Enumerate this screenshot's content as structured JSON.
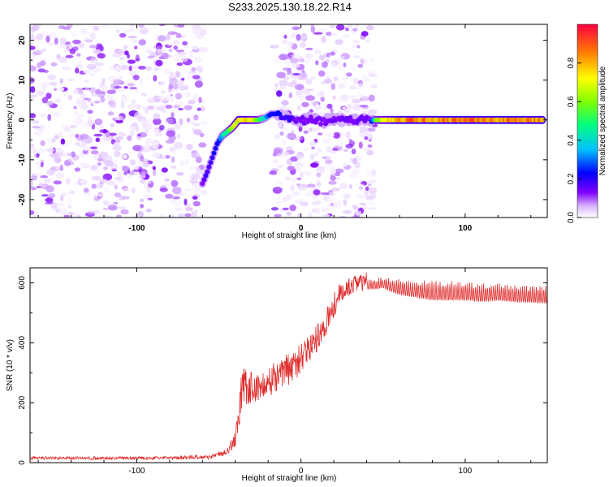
{
  "title": "S233.2025.130.18.22.R14",
  "chart_data": [
    {
      "type": "heatmap",
      "xlabel": "Height of straight line (km)",
      "ylabel": "Frequency (Hz)",
      "xlim": [
        -165,
        150
      ],
      "ylim": [
        -24.5,
        24
      ],
      "x_ticks": [
        -100,
        0,
        100
      ],
      "y_ticks": [
        -20,
        -10,
        0,
        10,
        20
      ],
      "colorbar": {
        "label": "Normalized spectral amplitude",
        "range": [
          0,
          1
        ],
        "ticks": [
          0.0,
          0.2,
          0.4,
          0.6,
          0.8
        ],
        "tick_labels": [
          "0.0",
          "0.2",
          "0.4",
          "0.6",
          "0.8"
        ],
        "colormap": [
          "#ffffff",
          "#d9b3ff",
          "#8000ff",
          "#0000ff",
          "#00c0ff",
          "#00ff80",
          "#80ff00",
          "#ffff00",
          "#ff8000",
          "#ff0040"
        ]
      },
      "noise_regions": [
        [
          -165,
          -58
        ],
        [
          -17,
          45
        ]
      ],
      "signal_track": {
        "x": [
          -60,
          -57,
          -54,
          -51,
          -48,
          -45,
          -42,
          -38,
          -34,
          -30,
          -26,
          -22,
          -18,
          -14,
          -10,
          -6,
          -2,
          2,
          6,
          10,
          14,
          18,
          22,
          26,
          30,
          34,
          38,
          42,
          46,
          60,
          80,
          100,
          120,
          148
        ],
        "freq": [
          -16,
          -13,
          -9.5,
          -6,
          -4,
          -3,
          -2,
          0,
          0,
          0,
          0,
          0.5,
          1.5,
          1.5,
          1,
          0.5,
          0,
          0,
          0.5,
          0,
          -0.5,
          0.5,
          0,
          0.5,
          0,
          0,
          0,
          0,
          0,
          0,
          0,
          0,
          0,
          0
        ],
        "amplitude": [
          0.25,
          0.3,
          0.3,
          0.35,
          0.5,
          0.6,
          0.7,
          0.85,
          0.9,
          0.8,
          0.7,
          0.5,
          0.35,
          0.35,
          0.3,
          0.3,
          0.25,
          0.25,
          0.25,
          0.25,
          0.25,
          0.25,
          0.25,
          0.25,
          0.25,
          0.25,
          0.25,
          0.25,
          0.7,
          0.95,
          0.95,
          0.95,
          0.95,
          0.95
        ]
      }
    },
    {
      "type": "line",
      "xlabel": "Height of straight line (km)",
      "ylabel": "SNR (10 * v/v)",
      "xlim": [
        -165,
        150
      ],
      "ylim": [
        0,
        650
      ],
      "x_ticks": [
        -100,
        0,
        100
      ],
      "y_ticks": [
        0,
        200,
        400,
        600
      ],
      "color": "#e03030",
      "series": [
        {
          "x": [
            -165,
            -150,
            -130,
            -110,
            -90,
            -70,
            -55,
            -48,
            -44,
            -40,
            -37,
            -35,
            -33,
            -30,
            -25,
            -20,
            -15,
            -10,
            -5,
            0,
            5,
            10,
            15,
            20,
            25,
            30,
            35,
            40,
            45,
            50,
            55,
            60,
            70,
            80,
            90,
            100,
            110,
            120,
            130,
            140,
            150
          ],
          "y": [
            15,
            15,
            15,
            15,
            15,
            18,
            20,
            30,
            45,
            80,
            200,
            280,
            230,
            250,
            260,
            270,
            290,
            310,
            320,
            345,
            380,
            420,
            470,
            530,
            570,
            590,
            600,
            605,
            605,
            610,
            605,
            600,
            595,
            590,
            590,
            590,
            585,
            585,
            580,
            578,
            575
          ],
          "amp": [
            5,
            5,
            5,
            5,
            5,
            6,
            8,
            10,
            15,
            25,
            60,
            70,
            60,
            60,
            55,
            55,
            55,
            55,
            55,
            55,
            50,
            50,
            50,
            45,
            40,
            30,
            30,
            30,
            30,
            30,
            40,
            45,
            50,
            55,
            55,
            55,
            55,
            50,
            50,
            50,
            50
          ]
        }
      ]
    }
  ]
}
